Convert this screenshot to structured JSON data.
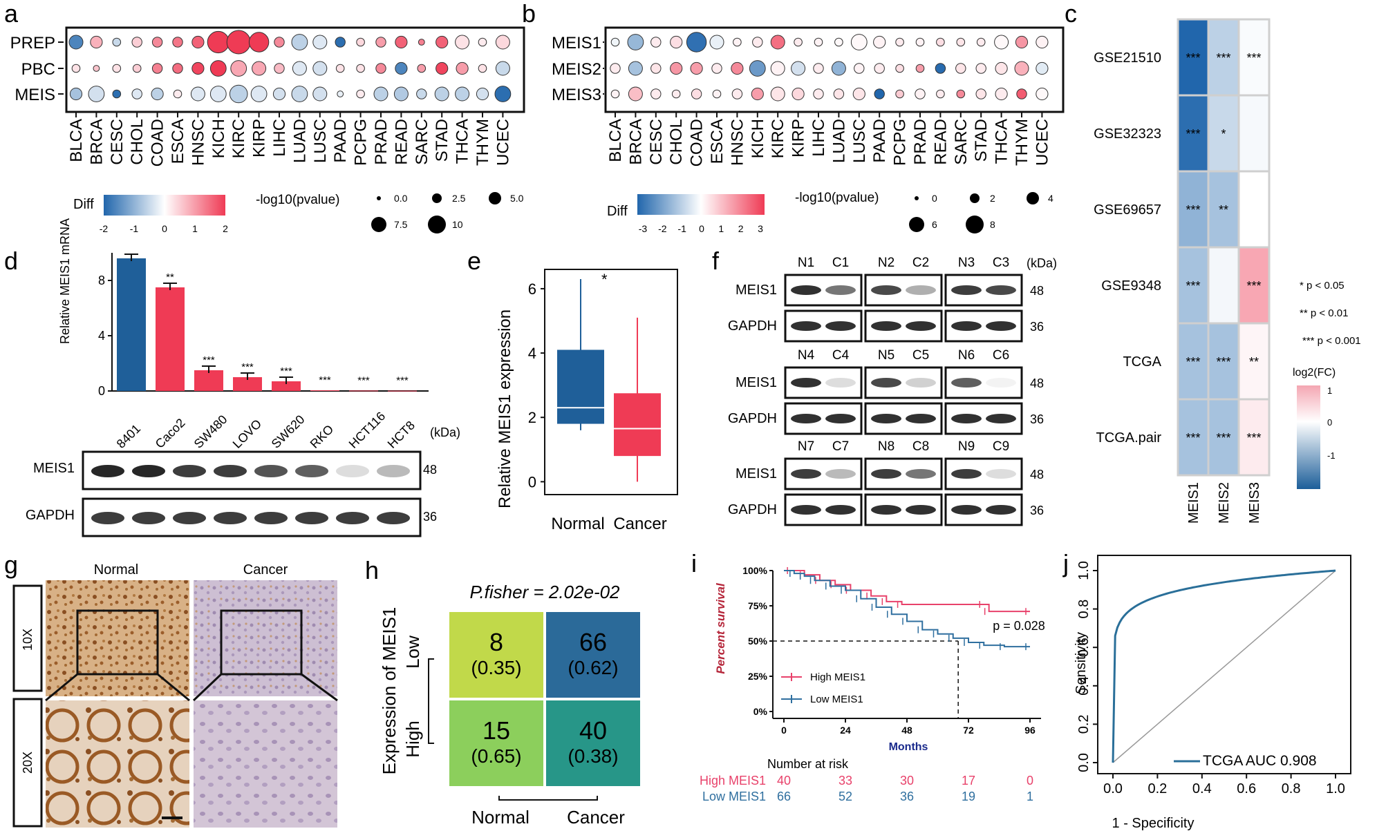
{
  "colors": {
    "blue": "#1f5f99",
    "red": "#ef3b55",
    "lightblue": "#7aa6cc",
    "lightred": "#f6a5b4",
    "paleblue": "#dce8f2",
    "palered": "#fbe0e5",
    "km_red": "#e8416a",
    "km_blue": "#2f6f9f",
    "roc": "#2a6f99"
  },
  "panel_letters": [
    "a",
    "b",
    "c",
    "d",
    "e",
    "f",
    "g",
    "h",
    "i",
    "j"
  ],
  "cancers": [
    "BLCA",
    "BRCA",
    "CESC",
    "CHOL",
    "COAD",
    "ESCA",
    "HNSC",
    "KICH",
    "KIRC",
    "KIRP",
    "LIHC",
    "LUAD",
    "LUSC",
    "PAAD",
    "PCPG",
    "PRAD",
    "READ",
    "SARC",
    "STAD",
    "THCA",
    "THYM",
    "UCEC"
  ],
  "panel_a": {
    "rows": [
      "PREP",
      "PBC",
      "MEIS"
    ],
    "diff": [
      [
        -1.6,
        0.8,
        -0.5,
        0.5,
        1.2,
        1.4,
        1.6,
        2.0,
        2.0,
        2.0,
        1.2,
        -0.6,
        -0.3,
        -1.9,
        0.4,
        1.0,
        1.6,
        1.3,
        1.6,
        0.3,
        0.2,
        0.4
      ],
      [
        0.3,
        0.6,
        0.3,
        0.5,
        1.3,
        1.5,
        1.9,
        2.0,
        0.9,
        0.9,
        0.7,
        -0.3,
        -0.4,
        0.3,
        0.3,
        1.2,
        -1.6,
        1.0,
        1.9,
        1.0,
        0.3,
        -0.5
      ],
      [
        -0.8,
        -0.4,
        -1.9,
        -0.3,
        -0.6,
        0.2,
        -0.3,
        -0.3,
        -0.6,
        -0.3,
        -0.4,
        -0.5,
        -0.4,
        -0.2,
        0.2,
        -0.6,
        -0.7,
        -0.5,
        -0.6,
        -0.6,
        -0.4,
        -1.9
      ]
    ],
    "logp": [
      [
        5,
        4,
        2,
        3,
        3,
        3,
        4,
        9,
        10,
        8,
        3,
        6,
        5,
        3,
        2,
        3,
        4,
        1,
        4,
        5,
        2,
        5
      ],
      [
        2,
        1,
        2,
        2,
        3,
        3,
        4,
        6,
        6,
        5,
        3,
        5,
        5,
        2,
        2,
        3,
        4,
        2,
        4,
        4,
        2,
        5
      ],
      [
        4,
        6,
        2,
        3,
        4,
        2,
        5,
        6,
        7,
        6,
        4,
        6,
        5,
        1,
        2,
        5,
        5,
        3,
        5,
        5,
        4,
        6
      ]
    ],
    "legend_title": "Diff",
    "legend_ticks": [
      "-2",
      "-1",
      "0",
      "1",
      "2"
    ],
    "size_title": "-log10(pvalue)",
    "size_labels": [
      "0.0",
      "2.5",
      "5.0",
      "7.5",
      "10"
    ]
  },
  "panel_b": {
    "rows": [
      "MEIS1",
      "MEIS2",
      "MEIS3"
    ],
    "diff": [
      [
        -0.2,
        -1.4,
        0.3,
        0.5,
        -2.8,
        -0.3,
        0.2,
        0.3,
        2.2,
        0.3,
        0.2,
        0.1,
        0.1,
        0.2,
        0.3,
        0.2,
        0.5,
        0.4,
        0.3,
        0.1,
        1.6,
        0.2
      ],
      [
        0.3,
        -1.2,
        0.4,
        1.6,
        1.5,
        0.3,
        1.8,
        -2.0,
        0.2,
        -0.6,
        0.3,
        -1.5,
        0.2,
        0.3,
        0.5,
        1.5,
        -2.9,
        0.4,
        0.3,
        0.4,
        1.2,
        -0.4
      ],
      [
        0.2,
        1.0,
        0.3,
        0.3,
        0.5,
        0.2,
        0.3,
        1.5,
        0.4,
        0.6,
        0.3,
        0.4,
        0.4,
        -3.0,
        0.8,
        0.2,
        0.3,
        1.8,
        0.4,
        0.3,
        2.5,
        0.1
      ]
    ],
    "logp": [
      [
        2,
        6,
        3,
        4,
        8,
        5,
        2,
        3,
        5,
        2,
        2,
        2,
        6,
        4,
        2,
        2,
        2,
        2,
        2,
        5,
        4,
        4
      ],
      [
        3,
        5,
        3,
        4,
        4,
        3,
        4,
        6,
        5,
        5,
        3,
        5,
        3,
        3,
        2,
        2,
        3,
        3,
        3,
        4,
        5,
        4
      ],
      [
        2,
        5,
        3,
        2,
        3,
        2,
        3,
        4,
        5,
        4,
        3,
        3,
        4,
        3,
        2,
        3,
        2,
        2,
        3,
        4,
        3,
        4
      ]
    ],
    "legend_title": "Diff",
    "legend_ticks": [
      "-3",
      "-2",
      "-1",
      "0",
      "1",
      "2",
      "3"
    ],
    "size_title": "-log10(pvalue)",
    "size_labels": [
      "0",
      "2",
      "4",
      "6",
      "8"
    ]
  },
  "panel_c": {
    "datasets": [
      "GSE21510",
      "GSE32323",
      "GSE69657",
      "GSE9348",
      "TCGA",
      "TCGA.pair"
    ],
    "genes": [
      "MEIS1",
      "MEIS2",
      "MEIS3"
    ],
    "values": [
      [
        -2.0,
        -0.6,
        -0.05
      ],
      [
        -1.9,
        -0.5,
        -0.08
      ],
      [
        -1.0,
        -0.8,
        0.0
      ],
      [
        -0.8,
        -0.1,
        0.9
      ],
      [
        -0.8,
        -0.8,
        0.1
      ],
      [
        -0.8,
        -0.8,
        0.2
      ]
    ],
    "stars": [
      [
        "***",
        "***",
        "***"
      ],
      [
        "***",
        "*",
        ""
      ],
      [
        "***",
        "**",
        ""
      ],
      [
        "***",
        "",
        "***"
      ],
      [
        "***",
        "***",
        "**"
      ],
      [
        "***",
        "***",
        "***"
      ]
    ],
    "sig_legend": [
      "* p < 0.05",
      "** p < 0.01",
      "*** p < 0.001"
    ],
    "scale_title": "log2(FC)",
    "scale_ticks": [
      "1",
      "0",
      "-1"
    ]
  },
  "panel_d": {
    "ylabel": "Relative MEIS1 mRNA",
    "yticks": [
      "0",
      "4",
      "8"
    ],
    "ymax": 10,
    "cells": [
      "8401",
      "Caco2",
      "SW480",
      "LOVO",
      "SW620",
      "RKO",
      "HCT116",
      "HCT8"
    ],
    "values": [
      9.6,
      7.5,
      1.5,
      1.0,
      0.7,
      0.05,
      0.03,
      0.02
    ],
    "sig": [
      "",
      "**",
      "***",
      "***",
      "***",
      "***",
      "***",
      "***"
    ],
    "kda": "(kDa)",
    "bands": [
      {
        "label": "MEIS1",
        "kda": "48"
      },
      {
        "label": "GAPDH",
        "kda": "36"
      }
    ]
  },
  "panel_e": {
    "ylabel": "Relative MEIS1 expression",
    "yticks": [
      "0",
      "2",
      "4",
      "6"
    ],
    "groups": [
      "Normal",
      "Cancer"
    ],
    "boxes": [
      {
        "min": 1.6,
        "q1": 1.8,
        "med": 2.3,
        "q3": 4.1,
        "max": 6.3
      },
      {
        "min": 0.0,
        "q1": 0.8,
        "med": 1.65,
        "q3": 2.75,
        "max": 5.1
      }
    ],
    "sig": "*"
  },
  "panel_f": {
    "kda": "(kDa)",
    "groups": [
      {
        "labels": [
          "N1",
          "C1",
          "N2",
          "C2",
          "N3",
          "C3"
        ]
      },
      {
        "labels": [
          "N4",
          "C4",
          "N5",
          "C5",
          "N6",
          "C6"
        ]
      },
      {
        "labels": [
          "N7",
          "C7",
          "N8",
          "C8",
          "N9",
          "C9"
        ]
      }
    ],
    "proteins": [
      {
        "label": "MEIS1",
        "kda": "48"
      },
      {
        "label": "GAPDH",
        "kda": "36"
      }
    ]
  },
  "panel_g": {
    "columns": [
      "Normal",
      "Cancer"
    ],
    "rows": [
      "10X",
      "20X"
    ]
  },
  "panel_h": {
    "title": "P.fisher =  2.02e-02",
    "ylabel": "Expression of MEIS1",
    "rows": [
      "Low",
      "High"
    ],
    "cols": [
      "Normal",
      "Cancer"
    ],
    "cells": [
      [
        {
          "n": "8",
          "p": "(0.35)",
          "color": "#c1d94a"
        },
        {
          "n": "66",
          "p": "(0.62)",
          "color": "#2b6a99"
        }
      ],
      [
        {
          "n": "15",
          "p": "(0.65)",
          "color": "#8ccf5c"
        },
        {
          "n": "40",
          "p": "(0.38)",
          "color": "#279688"
        }
      ]
    ]
  },
  "panel_i": {
    "ylabel": "Percent survival",
    "xlabel": "Months",
    "yticks": [
      "0%",
      "25%",
      "50%",
      "75%",
      "100%"
    ],
    "xticks": [
      "0",
      "24",
      "48",
      "72",
      "96"
    ],
    "pvalue": "p = 0.028",
    "legend": [
      "High MEIS1",
      "Low MEIS1"
    ],
    "risk_title": "Number at risk",
    "risk": [
      {
        "label": "High MEIS1",
        "values": [
          "40",
          "33",
          "30",
          "17",
          "0"
        ]
      },
      {
        "label": "Low MEIS1",
        "values": [
          "66",
          "52",
          "36",
          "19",
          "1"
        ]
      }
    ],
    "high_curve": [
      [
        0,
        1.0
      ],
      [
        3,
        1.0
      ],
      [
        8,
        0.97
      ],
      [
        14,
        0.93
      ],
      [
        20,
        0.9
      ],
      [
        26,
        0.86
      ],
      [
        34,
        0.82
      ],
      [
        40,
        0.78
      ],
      [
        46,
        0.76
      ],
      [
        78,
        0.76
      ],
      [
        80,
        0.71
      ],
      [
        96,
        0.71
      ]
    ],
    "low_curve": [
      [
        0,
        1.0
      ],
      [
        4,
        0.98
      ],
      [
        8,
        0.96
      ],
      [
        12,
        0.93
      ],
      [
        18,
        0.89
      ],
      [
        24,
        0.86
      ],
      [
        30,
        0.8
      ],
      [
        36,
        0.74
      ],
      [
        42,
        0.69
      ],
      [
        48,
        0.64
      ],
      [
        54,
        0.58
      ],
      [
        60,
        0.55
      ],
      [
        66,
        0.52
      ],
      [
        72,
        0.49
      ],
      [
        78,
        0.47
      ],
      [
        86,
        0.46
      ],
      [
        96,
        0.46
      ]
    ],
    "median_x": 68
  },
  "panel_j": {
    "xlabel": "1 - Specificity",
    "ylabel": "Sensitivity",
    "ticks": [
      "0.0",
      "0.2",
      "0.4",
      "0.6",
      "0.8",
      "1.0"
    ],
    "legend": "TCGA AUC 0.908"
  }
}
